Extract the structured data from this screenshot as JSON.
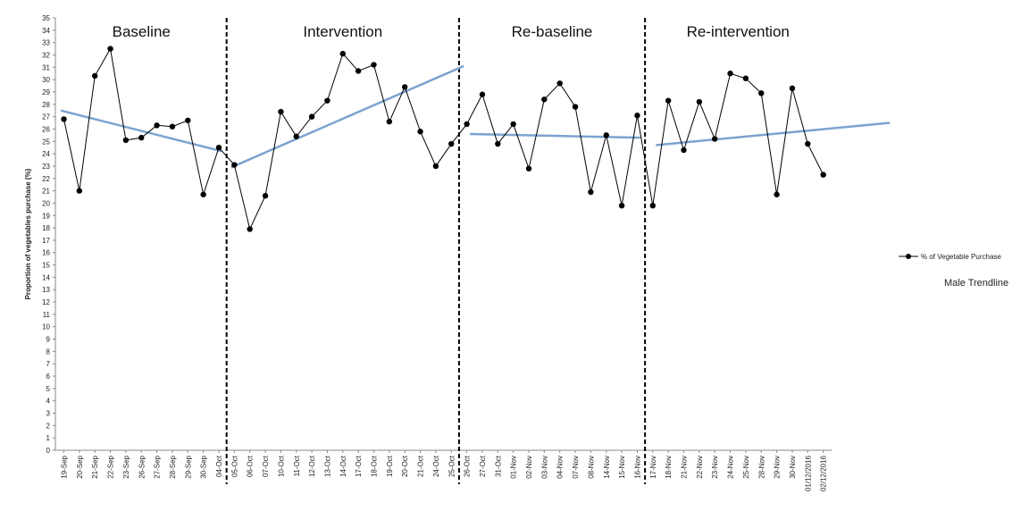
{
  "chart_data": {
    "type": "line",
    "ylabel": "Proportion of vegetables purchase (%)",
    "xlabel": "",
    "ylim": [
      0,
      35
    ],
    "ytick_step": 1,
    "grid": false,
    "categories": [
      "19-Sep",
      "20-Sep",
      "21-Sep",
      "22-Sep",
      "23-Sep",
      "26-Sep",
      "27-Sep",
      "28-Sep",
      "29-Sep",
      "30-Sep",
      "04-Oct",
      "05-Oct",
      "06-Oct",
      "07-Oct",
      "10-Oct",
      "11-Oct",
      "12-Oct",
      "13-Oct",
      "14-Oct",
      "17-Oct",
      "18-Oct",
      "19-Oct",
      "20-Oct",
      "21-Oct",
      "24-Oct",
      "25-Oct",
      "26-Oct",
      "27-Oct",
      "31-Oct",
      "01-Nov",
      "02-Nov",
      "03-Nov",
      "04-Nov",
      "07-Nov",
      "08-Nov",
      "14-Nov",
      "15-Nov",
      "16-Nov",
      "17-Nov",
      "18-Nov",
      "21-Nov",
      "22-Nov",
      "23-Nov",
      "24-Nov",
      "25-Nov",
      "28-Nov",
      "29-Nov",
      "30-Nov",
      "01/12/2016",
      "02/12/2016"
    ],
    "series": [
      {
        "name": "% of Vegetable Purchase",
        "color": "#000000",
        "values": [
          26.8,
          21.0,
          30.3,
          32.5,
          25.1,
          25.3,
          26.3,
          26.2,
          26.7,
          20.7,
          24.5,
          23.1,
          17.9,
          20.6,
          27.4,
          25.4,
          27.0,
          28.3,
          32.1,
          30.7,
          31.2,
          26.6,
          29.4,
          25.8,
          23.0,
          24.8,
          26.4,
          28.8,
          24.8,
          26.4,
          22.8,
          28.4,
          29.7,
          27.8,
          20.9,
          25.5,
          19.8,
          27.1,
          19.8,
          28.3,
          24.3,
          28.2,
          25.2,
          30.5,
          30.1,
          28.9,
          20.7,
          29.3,
          24.8,
          22.3
        ]
      }
    ],
    "phases": [
      {
        "label": "Baseline",
        "start": 0,
        "end": 10
      },
      {
        "label": "Intervention",
        "start": 11,
        "end": 25
      },
      {
        "label": "Re-baseline",
        "start": 26,
        "end": 37
      },
      {
        "label": "Re-intervention",
        "start": 38,
        "end": 49
      }
    ],
    "trendlines": [
      {
        "name": "Male Trendline",
        "color": "#7ba3cf",
        "x_start": -0.2,
        "y_start": 27.5,
        "x_end": 10.2,
        "y_end": 24.2
      },
      {
        "name": "Male Trendline",
        "color": "#7ba3cf",
        "x_start": 10.8,
        "y_start": 22.9,
        "x_end": 25.8,
        "y_end": 31.1
      },
      {
        "name": "Male Trendline",
        "color": "#7ba3cf",
        "x_start": 26.2,
        "y_start": 25.6,
        "x_end": 37.2,
        "y_end": 25.3
      },
      {
        "name": "Male Trendline",
        "color": "#7ba3cf",
        "x_start": 38.2,
        "y_start": 24.7,
        "x_end": 53.3,
        "y_end": 26.5
      }
    ],
    "legend": {
      "position": "right",
      "series_label": "% of Vegetable Purchase",
      "trend_label": "Male Trendline"
    }
  }
}
